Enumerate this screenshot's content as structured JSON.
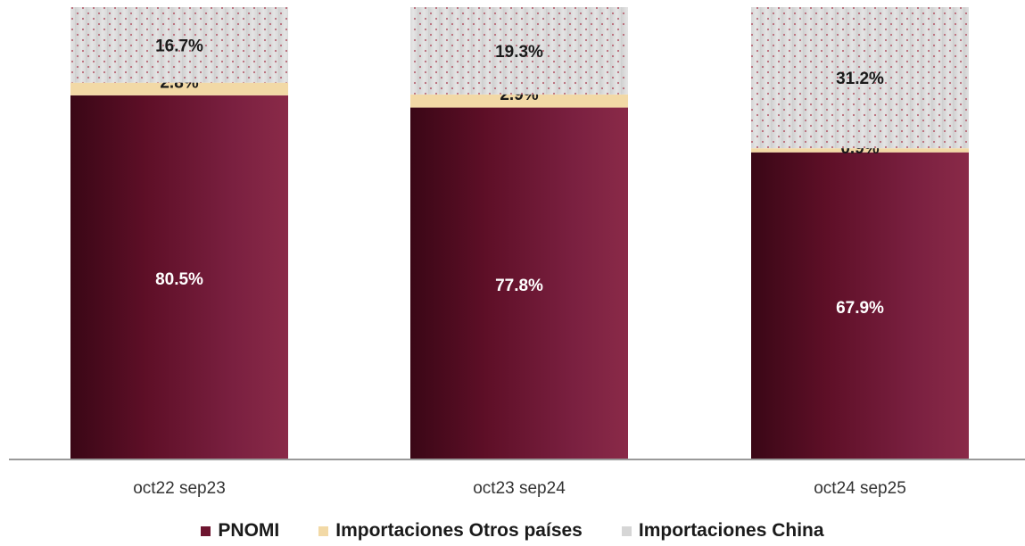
{
  "chart_data": {
    "type": "bar",
    "stacked": true,
    "categories": [
      "oct22 sep23",
      "oct23 sep24",
      "oct24 sep25"
    ],
    "series": [
      {
        "name": "PNOMI",
        "values": [
          80.5,
          77.8,
          67.9
        ],
        "color": "#6e1530",
        "labels": [
          "80.5%",
          "77.8%",
          "67.9%"
        ]
      },
      {
        "name": "Importaciones Otros países",
        "values": [
          2.8,
          2.9,
          0.9
        ],
        "color": "#f2d9a6",
        "labels": [
          "2.8%",
          "2.9%",
          "0.9%"
        ]
      },
      {
        "name": "Importaciones China",
        "values": [
          16.7,
          19.3,
          31.2
        ],
        "color": "#d6d6d6",
        "labels": [
          "16.7%",
          "19.3%",
          "31.2%"
        ]
      }
    ],
    "ylim": [
      0,
      100
    ],
    "grid": false,
    "legend_position": "bottom"
  }
}
